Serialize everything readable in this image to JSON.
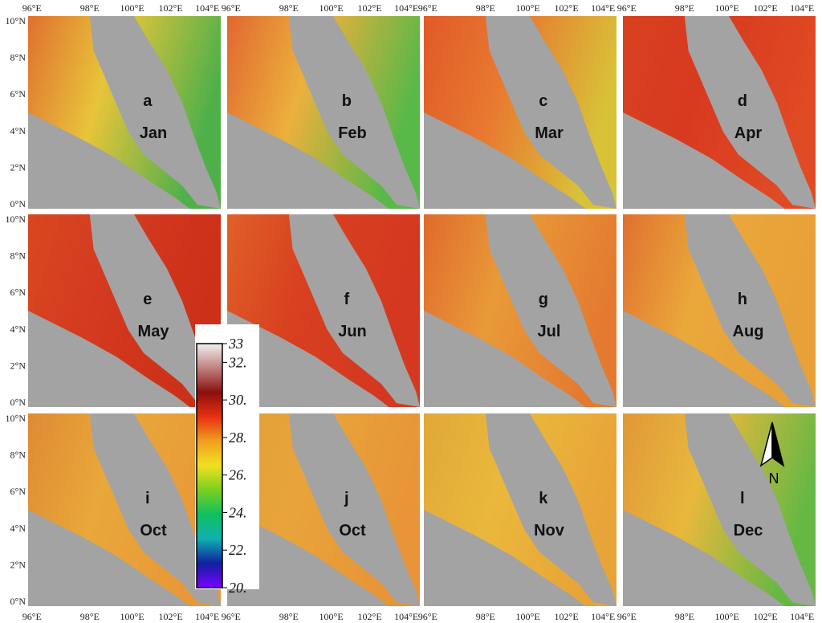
{
  "figure": {
    "lon_ticks": [
      "96°E",
      "98°E",
      "100°E",
      "102°E",
      "104°E"
    ],
    "lat_ticks": [
      "10°N",
      "8°N",
      "6°N",
      "4°N",
      "2°N",
      "0°N"
    ],
    "panels": [
      {
        "letter": "a",
        "month": "Jan",
        "sea": "#e8c43a",
        "east": "#4fb04a",
        "west": "#e07030"
      },
      {
        "letter": "b",
        "month": "Feb",
        "sea": "#ecb03c",
        "east": "#58b848",
        "west": "#e06830"
      },
      {
        "letter": "c",
        "month": "Mar",
        "sea": "#e87830",
        "east": "#d8c238",
        "west": "#e05a28"
      },
      {
        "letter": "d",
        "month": "Apr",
        "sea": "#d83a20",
        "east": "#e04a24",
        "west": "#d84020"
      },
      {
        "letter": "e",
        "month": "May",
        "sea": "#d43a20",
        "east": "#cc3018",
        "west": "#d84820"
      },
      {
        "letter": "f",
        "month": "Jun",
        "sea": "#d84020",
        "east": "#d43820",
        "west": "#e06028"
      },
      {
        "letter": "g",
        "month": "Jul",
        "sea": "#e89a38",
        "east": "#e47a30",
        "west": "#e06a2c"
      },
      {
        "letter": "h",
        "month": "Aug",
        "sea": "#eaa83a",
        "east": "#e8a038",
        "west": "#e07030"
      },
      {
        "letter": "i",
        "month": "Oct",
        "sea": "#e8a83a",
        "east": "#e89838",
        "west": "#e08a34"
      },
      {
        "letter": "j",
        "month": "Oct",
        "sea": "#e8a43a",
        "east": "#e89438",
        "west": "#e0a038"
      },
      {
        "letter": "k",
        "month": "Nov",
        "sea": "#eab83c",
        "east": "#e8a438",
        "west": "#e0a838"
      },
      {
        "letter": "l",
        "month": "Dec",
        "sea": "#e8b83c",
        "east": "#66b844",
        "west": "#e09838"
      }
    ]
  },
  "colorbar": {
    "ticks": [
      "33",
      "32.",
      "30.",
      "28.",
      "26.",
      "24.",
      "22.",
      "20."
    ],
    "stops": [
      "#7a00ff",
      "#1020a0",
      "#10b0b0",
      "#10c060",
      "#7ad020",
      "#f0e020",
      "#f0a020",
      "#e83010",
      "#8a1010",
      "#c08080",
      "#f0f0f0"
    ]
  },
  "compass": {
    "label": "N"
  }
}
